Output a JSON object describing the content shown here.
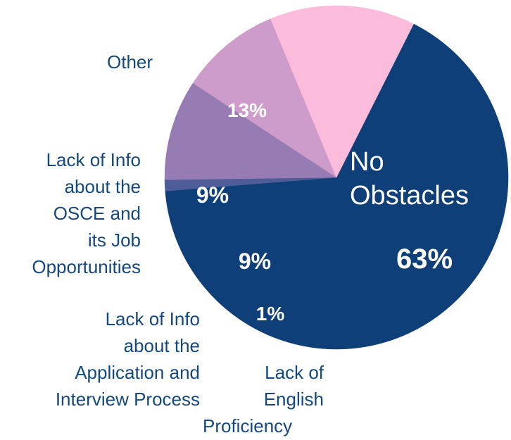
{
  "chart_data": {
    "type": "pie",
    "title": "",
    "start_angle_deg": -63.3,
    "direction": "clockwise",
    "slices": [
      {
        "name": "No Obstacles",
        "value": 63,
        "label": "63%",
        "color": "#0f3f78"
      },
      {
        "name": "Lack of English Proficiency",
        "value": 1,
        "label": "1%",
        "color": "#4e5c97"
      },
      {
        "name": "Lack of Info about the Application and Interview Process",
        "value": 9,
        "label": "9%",
        "color": "#967cb2"
      },
      {
        "name": "Lack of Info about the OSCE and its Job Opportunities",
        "value": 9,
        "label": "9%",
        "color": "#ce9ccb"
      },
      {
        "name": "Other",
        "value": 13,
        "label": "13%",
        "color": "#fbbcdb"
      }
    ]
  },
  "labels": {
    "no_obstacles": [
      "No",
      "Obstacles"
    ],
    "english": [
      "Lack of",
      "English",
      "Proficiency"
    ],
    "application": [
      "Lack of Info",
      "about the",
      "Application and",
      "Interview Process"
    ],
    "osce": [
      "Lack of Info",
      "about the",
      "OSCE and",
      "its Job",
      "Opportunities"
    ],
    "other": [
      "Other"
    ]
  }
}
